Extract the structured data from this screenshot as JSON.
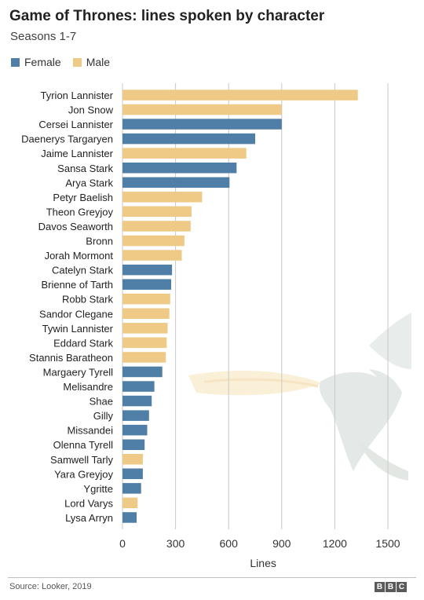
{
  "header": {
    "title": "Game of Thrones: lines spoken by character",
    "subtitle": "Seasons 1-7"
  },
  "legend": [
    {
      "label": "Female",
      "color": "#4f7ea6"
    },
    {
      "label": "Male",
      "color": "#efc986"
    }
  ],
  "footer": {
    "source": "Source: Looker, 2019",
    "logo": [
      "B",
      "B",
      "C"
    ]
  },
  "chart_data": {
    "type": "bar",
    "orientation": "horizontal",
    "title": "Game of Thrones: lines spoken by character",
    "subtitle": "Seasons 1-7",
    "xlabel": "Lines",
    "ylabel": "",
    "xlim": [
      0,
      1500
    ],
    "xticks": [
      0,
      300,
      600,
      900,
      1200,
      1500
    ],
    "grid": true,
    "legend_position": "top-left",
    "colors": {
      "Female": "#4f7ea6",
      "Male": "#efc986"
    },
    "categories": [
      "Tyrion Lannister",
      "Jon Snow",
      "Cersei Lannister",
      "Daenerys Targaryen",
      "Jaime Lannister",
      "Sansa Stark",
      "Arya Stark",
      "Petyr Baelish",
      "Theon Greyjoy",
      "Davos Seaworth",
      "Bronn",
      "Jorah Mormont",
      "Catelyn Stark",
      "Brienne of Tarth",
      "Robb Stark",
      "Sandor Clegane",
      "Tywin Lannister",
      "Eddard Stark",
      "Stannis Baratheon",
      "Margaery Tyrell",
      "Melisandre",
      "Shae",
      "Gilly",
      "Missandei",
      "Olenna Tyrell",
      "Samwell Tarly",
      "Yara Greyjoy",
      "Ygritte",
      "Lord Varys",
      "Lysa Arryn"
    ],
    "values": [
      1330,
      900,
      900,
      750,
      700,
      645,
      605,
      450,
      390,
      385,
      350,
      335,
      280,
      275,
      270,
      265,
      255,
      250,
      245,
      225,
      180,
      165,
      150,
      140,
      125,
      115,
      115,
      105,
      85,
      80
    ],
    "gender": [
      "Male",
      "Male",
      "Female",
      "Female",
      "Male",
      "Female",
      "Female",
      "Male",
      "Male",
      "Male",
      "Male",
      "Male",
      "Female",
      "Female",
      "Male",
      "Male",
      "Male",
      "Male",
      "Male",
      "Female",
      "Female",
      "Female",
      "Female",
      "Female",
      "Female",
      "Male",
      "Female",
      "Female",
      "Male",
      "Female"
    ]
  }
}
